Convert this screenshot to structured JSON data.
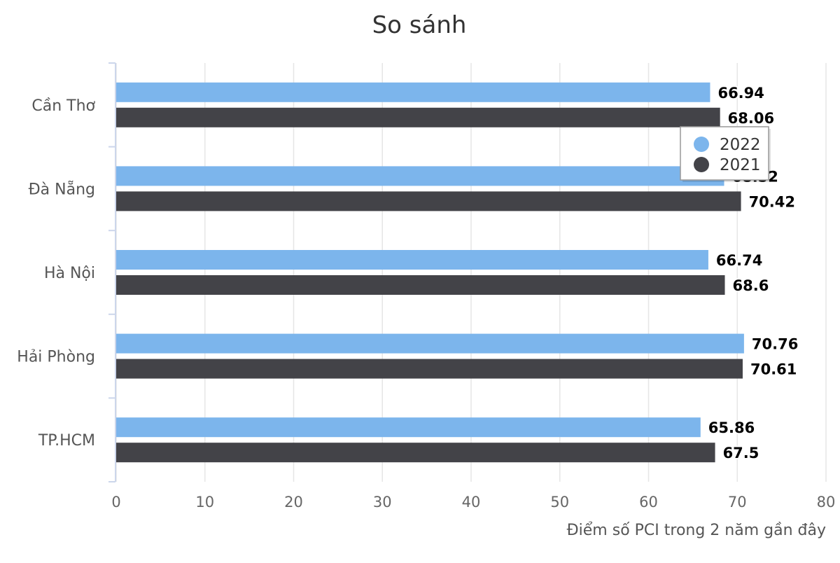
{
  "chart_data": {
    "type": "bar",
    "orientation": "horizontal",
    "title": "So sánh",
    "xlabel": "Điểm số PCI trong 2 năm gần đây",
    "ylabel": "",
    "categories": [
      "Cần Thơ",
      "Đà Nẵng",
      "Hà Nội",
      "Hải Phòng",
      "TP.HCM"
    ],
    "series": [
      {
        "name": "2022",
        "color": "#7cb5ec",
        "values": [
          66.94,
          68.52,
          66.74,
          70.76,
          65.86
        ],
        "labels": [
          "66.94",
          "68.52",
          "66.74",
          "70.76",
          "65.86"
        ]
      },
      {
        "name": "2021",
        "color": "#434348",
        "values": [
          68.06,
          70.42,
          68.6,
          70.61,
          67.5
        ],
        "labels": [
          "68.06",
          "70.42",
          "68.6",
          "70.61",
          "67.5"
        ]
      }
    ],
    "xlim": [
      0,
      80
    ],
    "ticks": [
      "0",
      "10",
      "20",
      "30",
      "40",
      "50",
      "60",
      "70",
      "80"
    ],
    "grid": true,
    "legend_position": "top-right"
  }
}
